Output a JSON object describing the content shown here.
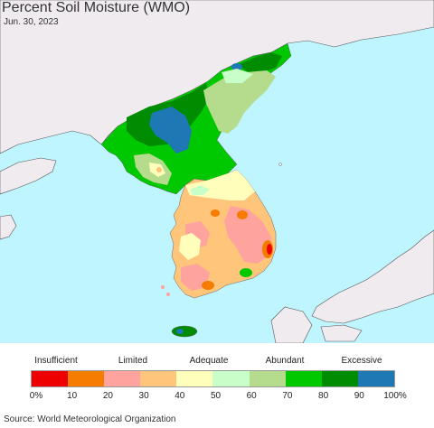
{
  "title": "Percent Soil Moisture (WMO)",
  "date": "Jun. 30, 2023",
  "legend": {
    "categories": [
      "Insufficient",
      "Limited",
      "Adequate",
      "Abundant",
      "Excessive"
    ],
    "colors": [
      "#ee0000",
      "#f57c00",
      "#ffa39e",
      "#ffc57a",
      "#ffffbb",
      "#c8ffc8",
      "#b4dc8c",
      "#00c800",
      "#008c00",
      "#1e78b4"
    ],
    "ticks": [
      "0%",
      "10",
      "20",
      "30",
      "40",
      "50",
      "60",
      "70",
      "80",
      "90",
      "100%"
    ]
  },
  "source": "Source: World Meteorological Organization"
}
